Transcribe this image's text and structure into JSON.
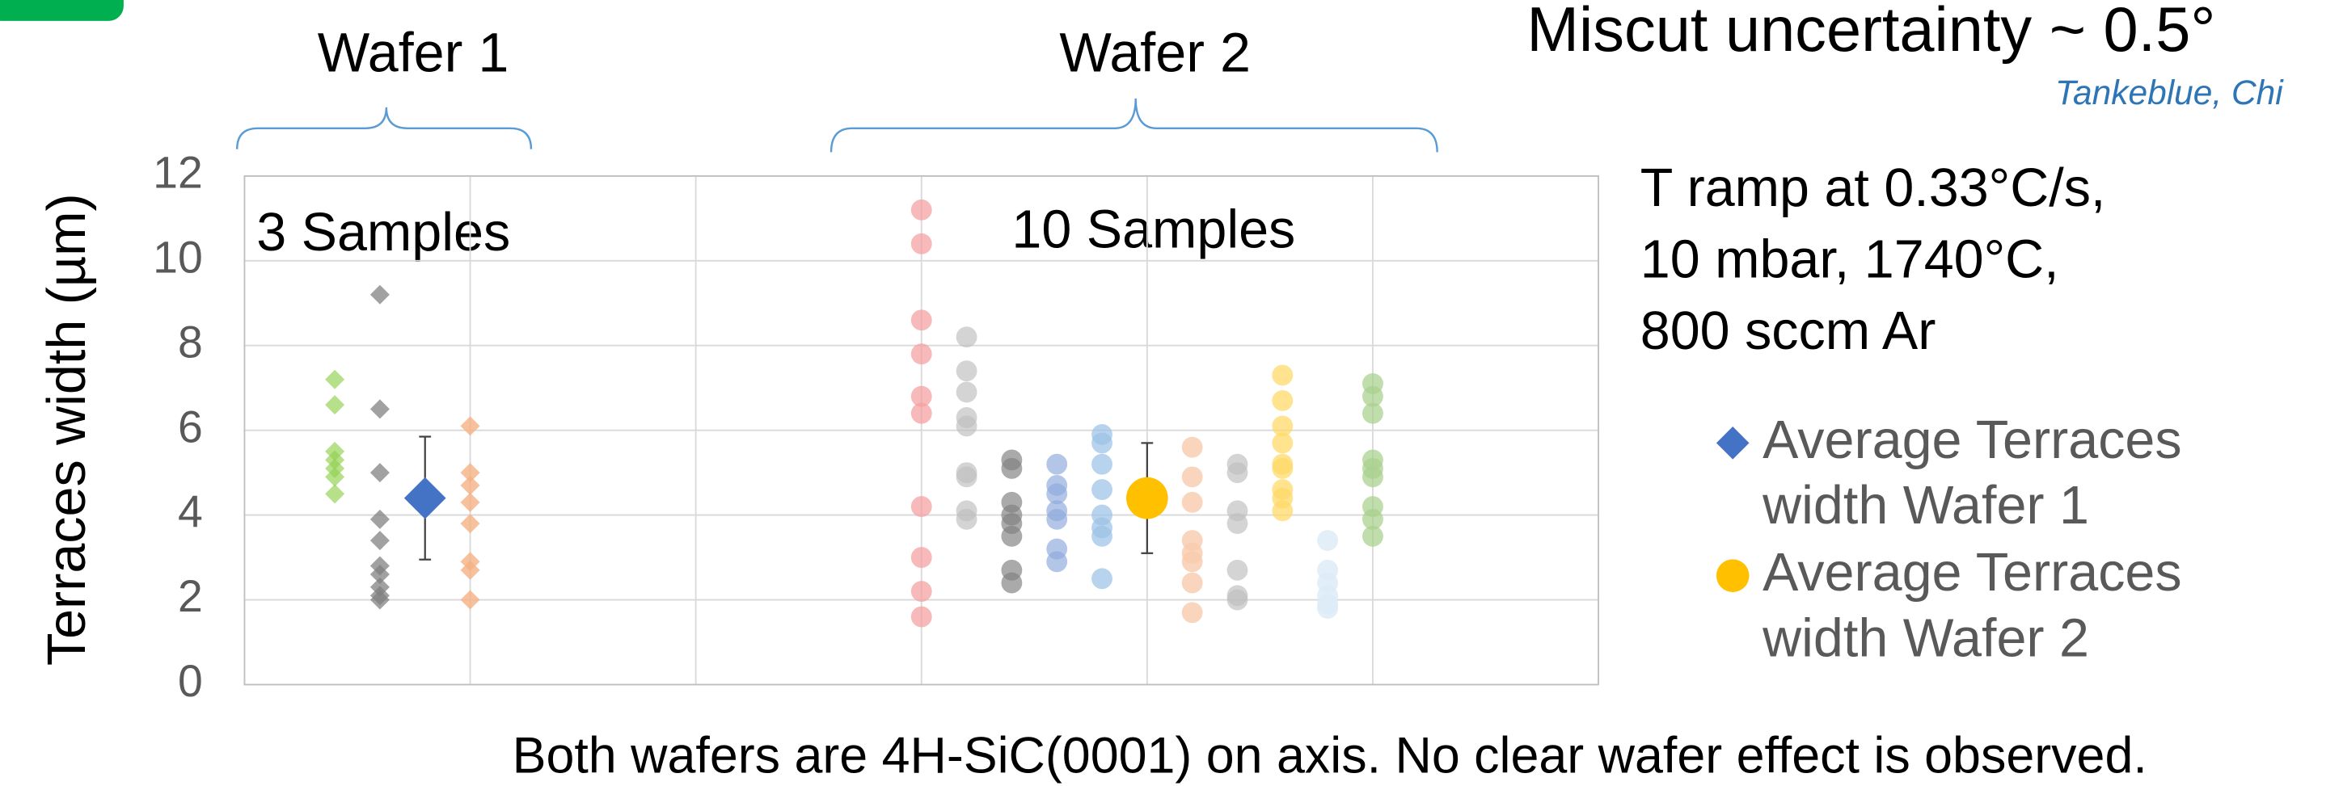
{
  "chart_data": {
    "type": "scatter",
    "y_label": "Terraces width (µm)",
    "groups": [
      {
        "label": "Wafer 1",
        "annotation": "3 Samples"
      },
      {
        "label": "Wafer 2",
        "annotation": "10 Samples"
      }
    ],
    "heading": "Miscut uncertainty ~ 0.5°",
    "source": "Tankeblue, Chi",
    "notes": [
      "T ramp at 0.33°C/s,",
      "10 mbar, 1740°C,",
      "800 sccm Ar"
    ],
    "footer": "Both wafers are 4H-SiC(0001) on axis. No clear wafer effect is observed.",
    "xlim": [
      0,
      6
    ],
    "xticks": [
      1,
      2,
      3,
      4,
      5
    ],
    "ylim": [
      0,
      12
    ],
    "yticks": [
      0,
      2,
      4,
      6,
      8,
      10,
      12
    ],
    "grid": true,
    "legend": "right",
    "series": [
      {
        "marker": "diamond",
        "color": "#92d050aa",
        "x": [
          0.4,
          0.4,
          0.4,
          0.4,
          0.4,
          0.4,
          0.4
        ],
        "values": [
          7.2,
          6.6,
          5.5,
          5.3,
          5.1,
          4.9,
          4.5
        ]
      },
      {
        "marker": "diamond",
        "color": "#7f7f7fbb",
        "x": [
          0.6,
          0.6,
          0.6,
          0.6,
          0.6,
          0.6,
          0.6,
          0.6,
          0.6,
          0.6
        ],
        "values": [
          9.2,
          6.5,
          5.0,
          3.9,
          3.4,
          2.8,
          2.6,
          2.3,
          2.1,
          2.0
        ]
      },
      {
        "name": "Average Terraces width Wafer 1",
        "marker": "diamond",
        "color": "#4472c4",
        "x": [
          0.8
        ],
        "values": [
          4.4
        ],
        "errors": [
          1.45
        ]
      },
      {
        "marker": "diamond",
        "color": "#f4b183cc",
        "x": [
          1,
          1,
          1,
          1,
          1,
          1,
          1,
          1
        ],
        "values": [
          6.1,
          5.0,
          4.7,
          4.3,
          3.8,
          2.9,
          2.7,
          2.0
        ]
      },
      {
        "marker": "circle",
        "color": "#f4a0a0bb",
        "x": [
          3,
          3,
          3,
          3,
          3,
          3,
          3,
          3,
          3,
          3
        ],
        "values": [
          11.2,
          10.4,
          8.6,
          7.8,
          6.8,
          6.4,
          4.2,
          3.0,
          2.2,
          1.6
        ]
      },
      {
        "marker": "circle",
        "color": "#bfbfbfaa",
        "x": [
          3.2,
          3.2,
          3.2,
          3.2,
          3.2,
          3.2,
          3.2,
          3.2,
          3.2
        ],
        "values": [
          8.2,
          7.4,
          6.9,
          6.3,
          6.1,
          5.0,
          4.9,
          4.1,
          3.9
        ]
      },
      {
        "marker": "circle",
        "color": "#7f7f7faa",
        "x": [
          3.4,
          3.4,
          3.4,
          3.4,
          3.4,
          3.4,
          3.4,
          3.4
        ],
        "values": [
          5.3,
          5.1,
          4.3,
          4.0,
          3.8,
          3.5,
          2.7,
          2.4
        ]
      },
      {
        "marker": "circle",
        "color": "#8faadcaa",
        "x": [
          3.6,
          3.6,
          3.6,
          3.6,
          3.6,
          3.6,
          3.6
        ],
        "values": [
          5.2,
          4.7,
          4.5,
          4.1,
          3.9,
          3.2,
          2.9
        ]
      },
      {
        "marker": "circle",
        "color": "#9dc3e6bb",
        "x": [
          3.8,
          3.8,
          3.8,
          3.8,
          3.8,
          3.8,
          3.8,
          3.8
        ],
        "values": [
          5.9,
          5.7,
          5.2,
          4.6,
          4.0,
          3.7,
          3.5,
          2.5
        ]
      },
      {
        "name": "Average Terraces width Wafer 2",
        "marker": "circle",
        "color": "#ffc000",
        "x": [
          4
        ],
        "values": [
          4.4
        ],
        "errors": [
          1.3
        ]
      },
      {
        "marker": "circle",
        "color": "#f8cbadcc",
        "x": [
          4.2,
          4.2,
          4.2,
          4.2,
          4.2,
          4.2,
          4.2,
          4.2
        ],
        "values": [
          5.6,
          4.9,
          4.3,
          3.4,
          3.1,
          2.9,
          2.4,
          1.7
        ]
      },
      {
        "marker": "circle",
        "color": "#bfbfbfaa",
        "x": [
          4.4,
          4.4,
          4.4,
          4.4,
          4.4,
          4.4,
          4.4
        ],
        "values": [
          5.2,
          5.0,
          4.1,
          3.8,
          2.7,
          2.1,
          2.0
        ]
      },
      {
        "marker": "circle",
        "color": "#ffd966bb",
        "x": [
          4.6,
          4.6,
          4.6,
          4.6,
          4.6,
          4.6,
          4.6,
          4.6,
          4.6
        ],
        "values": [
          7.3,
          6.7,
          6.1,
          5.7,
          5.2,
          5.1,
          4.6,
          4.4,
          4.1
        ]
      },
      {
        "marker": "circle",
        "color": "#deebf7dd",
        "x": [
          4.8,
          4.8,
          4.8,
          4.8,
          4.8,
          4.8
        ],
        "values": [
          3.4,
          2.7,
          2.4,
          2.1,
          1.9,
          1.8
        ]
      },
      {
        "marker": "circle",
        "color": "#a9d18ebb",
        "x": [
          5,
          5,
          5,
          5,
          5,
          5,
          5,
          5,
          5
        ],
        "values": [
          7.1,
          6.8,
          6.4,
          5.3,
          5.1,
          4.9,
          4.2,
          3.9,
          3.5
        ]
      }
    ]
  }
}
